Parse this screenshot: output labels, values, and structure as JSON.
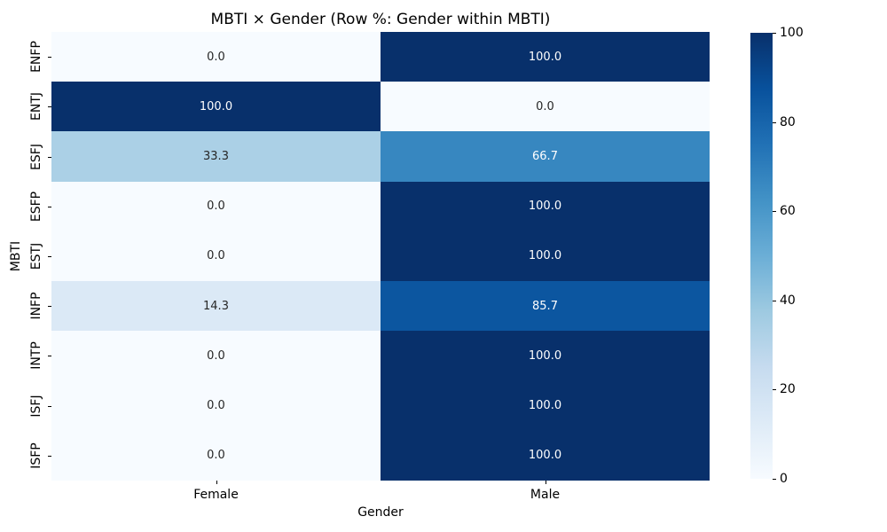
{
  "chart_data": {
    "type": "heatmap",
    "title": "MBTI × Gender (Row %: Gender within MBTI)",
    "xlabel": "Gender",
    "ylabel": "MBTI",
    "rows": [
      "ENFP",
      "ENTJ",
      "ESFJ",
      "ESFP",
      "ESTJ",
      "INFP",
      "INTP",
      "ISFJ",
      "ISFP"
    ],
    "columns": [
      "Female",
      "Male"
    ],
    "values": [
      [
        0.0,
        100.0
      ],
      [
        100.0,
        0.0
      ],
      [
        33.3,
        66.7
      ],
      [
        0.0,
        100.0
      ],
      [
        0.0,
        100.0
      ],
      [
        14.3,
        85.7
      ],
      [
        0.0,
        100.0
      ],
      [
        0.0,
        100.0
      ],
      [
        0.0,
        100.0
      ]
    ],
    "value_decimals": 1,
    "vmin": 0,
    "vmax": 100,
    "colorbar_ticks": [
      0,
      20,
      40,
      60,
      80,
      100
    ],
    "colorbar_position": "right",
    "grid": false,
    "colors": {
      "colormap_name": "Blues",
      "colormap_anchors": [
        "#f7fbff",
        "#deebf7",
        "#c6dbef",
        "#9ecae1",
        "#6baed6",
        "#4292c6",
        "#2171b5",
        "#08519c",
        "#08306b"
      ],
      "annotation_dark_text": "#262626",
      "annotation_light_text": "#ffffff",
      "background": "#ffffff"
    }
  }
}
